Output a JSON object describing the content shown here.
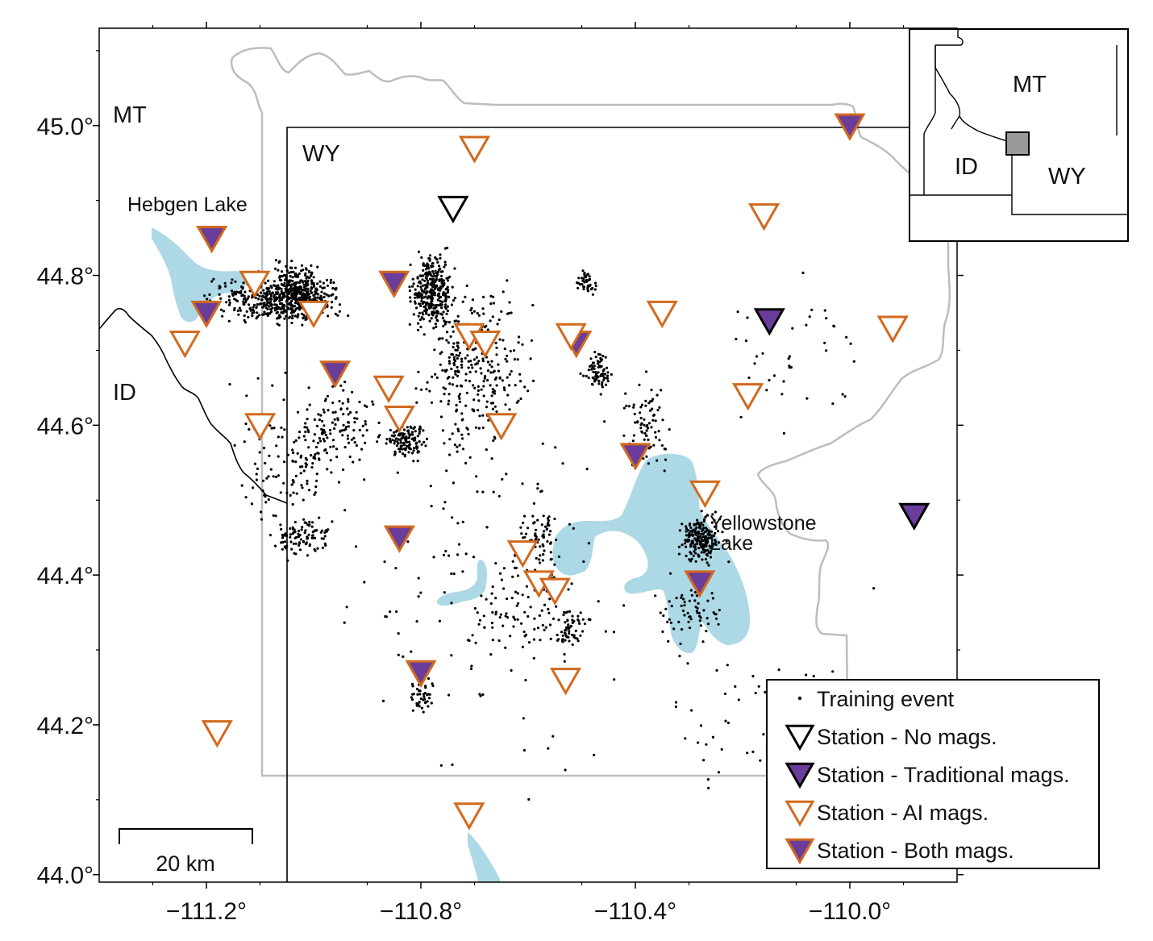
{
  "map": {
    "lon_range": [
      -111.4,
      -109.8
    ],
    "lat_range": [
      43.99,
      45.13
    ],
    "x_ticks": [
      {
        "value": -111.2,
        "label": "−111.2°"
      },
      {
        "value": -110.8,
        "label": "−110.8°"
      },
      {
        "value": -110.4,
        "label": "−110.4°"
      },
      {
        "value": -110.0,
        "label": "−110.0°"
      }
    ],
    "y_ticks": [
      {
        "value": 44.0,
        "label": "44.0°"
      },
      {
        "value": 44.2,
        "label": "44.2°"
      },
      {
        "value": 44.4,
        "label": "44.4°"
      },
      {
        "value": 44.6,
        "label": "44.6°"
      },
      {
        "value": 44.8,
        "label": "44.8°"
      },
      {
        "value": 45.0,
        "label": "45.0°"
      }
    ],
    "state_labels": {
      "mt": "MT",
      "wy": "WY",
      "id": "ID"
    },
    "place_labels": {
      "hebgen": "Hebgen Lake",
      "yellowstone_line1": "Yellowstone",
      "yellowstone_line2": "Lake"
    },
    "scale_bar": {
      "label": "20 km",
      "length_km": 20
    },
    "colors": {
      "lake": "#add8e6",
      "park_boundary": "#bdbdbd",
      "state_border": "#000000",
      "station_outline_ai": "#d2691e",
      "station_fill_traditional": "#6a3d9a",
      "event_dot": "#000000"
    }
  },
  "stations": [
    {
      "lon": -110.74,
      "lat": 44.89,
      "type": "none"
    },
    {
      "lon": -110.15,
      "lat": 44.74,
      "type": "traditional"
    },
    {
      "lon": -109.88,
      "lat": 44.48,
      "type": "traditional"
    },
    {
      "lon": -110.0,
      "lat": 45.0,
      "type": "both"
    },
    {
      "lon": -111.19,
      "lat": 44.85,
      "type": "both"
    },
    {
      "lon": -111.2,
      "lat": 44.75,
      "type": "both"
    },
    {
      "lon": -110.85,
      "lat": 44.79,
      "type": "both"
    },
    {
      "lon": -110.96,
      "lat": 44.67,
      "type": "both"
    },
    {
      "lon": -110.51,
      "lat": 44.71,
      "type": "both"
    },
    {
      "lon": -110.4,
      "lat": 44.56,
      "type": "both"
    },
    {
      "lon": -110.84,
      "lat": 44.45,
      "type": "both"
    },
    {
      "lon": -110.28,
      "lat": 44.39,
      "type": "both"
    },
    {
      "lon": -110.8,
      "lat": 44.27,
      "type": "both"
    },
    {
      "lon": -110.7,
      "lat": 44.97,
      "type": "ai"
    },
    {
      "lon": -110.16,
      "lat": 44.88,
      "type": "ai"
    },
    {
      "lon": -111.11,
      "lat": 44.79,
      "type": "ai"
    },
    {
      "lon": -111.0,
      "lat": 44.75,
      "type": "ai"
    },
    {
      "lon": -110.35,
      "lat": 44.75,
      "type": "ai"
    },
    {
      "lon": -109.92,
      "lat": 44.73,
      "type": "ai"
    },
    {
      "lon": -110.71,
      "lat": 44.72,
      "type": "ai"
    },
    {
      "lon": -110.68,
      "lat": 44.71,
      "type": "ai"
    },
    {
      "lon": -110.52,
      "lat": 44.72,
      "type": "ai"
    },
    {
      "lon": -111.24,
      "lat": 44.71,
      "type": "ai"
    },
    {
      "lon": -110.86,
      "lat": 44.65,
      "type": "ai"
    },
    {
      "lon": -110.19,
      "lat": 44.64,
      "type": "ai"
    },
    {
      "lon": -110.84,
      "lat": 44.61,
      "type": "ai"
    },
    {
      "lon": -110.65,
      "lat": 44.6,
      "type": "ai"
    },
    {
      "lon": -111.1,
      "lat": 44.6,
      "type": "ai"
    },
    {
      "lon": -110.27,
      "lat": 44.51,
      "type": "ai"
    },
    {
      "lon": -110.61,
      "lat": 44.43,
      "type": "ai"
    },
    {
      "lon": -110.58,
      "lat": 44.39,
      "type": "ai"
    },
    {
      "lon": -110.55,
      "lat": 44.38,
      "type": "ai"
    },
    {
      "lon": -110.53,
      "lat": 44.26,
      "type": "ai"
    },
    {
      "lon": -111.18,
      "lat": 44.19,
      "type": "ai"
    },
    {
      "lon": -110.71,
      "lat": 44.08,
      "type": "ai"
    }
  ],
  "event_clusters": [
    {
      "lon": -111.07,
      "lat": 44.77,
      "slon": 0.1,
      "slat": 0.025,
      "n": 420
    },
    {
      "lon": -111.03,
      "lat": 44.78,
      "slon": 0.04,
      "slat": 0.03,
      "n": 250
    },
    {
      "lon": -110.78,
      "lat": 44.78,
      "slon": 0.03,
      "slat": 0.04,
      "n": 320
    },
    {
      "lon": -110.7,
      "lat": 44.68,
      "slon": 0.08,
      "slat": 0.09,
      "n": 320
    },
    {
      "lon": -110.83,
      "lat": 44.58,
      "slon": 0.03,
      "slat": 0.02,
      "n": 120
    },
    {
      "lon": -110.28,
      "lat": 44.45,
      "slon": 0.03,
      "slat": 0.025,
      "n": 200
    },
    {
      "lon": -110.47,
      "lat": 44.67,
      "slon": 0.02,
      "slat": 0.02,
      "n": 70
    },
    {
      "lon": -110.49,
      "lat": 44.79,
      "slon": 0.02,
      "slat": 0.015,
      "n": 40
    },
    {
      "lon": -111.02,
      "lat": 44.45,
      "slon": 0.04,
      "slat": 0.02,
      "n": 90
    },
    {
      "lon": -110.58,
      "lat": 44.45,
      "slon": 0.03,
      "slat": 0.05,
      "n": 80
    },
    {
      "lon": -110.52,
      "lat": 44.33,
      "slon": 0.02,
      "slat": 0.02,
      "n": 50
    },
    {
      "lon": -110.8,
      "lat": 44.24,
      "slon": 0.02,
      "slat": 0.02,
      "n": 40
    },
    {
      "lon": -110.38,
      "lat": 44.6,
      "slon": 0.03,
      "slat": 0.05,
      "n": 80
    },
    {
      "lon": -110.95,
      "lat": 44.6,
      "slon": 0.06,
      "slat": 0.05,
      "n": 120
    },
    {
      "lon": -110.3,
      "lat": 44.35,
      "slon": 0.05,
      "slat": 0.03,
      "n": 60
    },
    {
      "lon": -110.6,
      "lat": 44.35,
      "slon": 0.12,
      "slat": 0.05,
      "n": 90
    },
    {
      "lon": -111.05,
      "lat": 44.55,
      "slon": 0.08,
      "slat": 0.08,
      "n": 120
    },
    {
      "lon": -110.7,
      "lat": 44.4,
      "slon": 0.22,
      "slat": 0.2,
      "n": 120
    },
    {
      "lon": -110.1,
      "lat": 44.7,
      "slon": 0.12,
      "slat": 0.08,
      "n": 40
    },
    {
      "lon": -110.2,
      "lat": 44.25,
      "slon": 0.2,
      "slat": 0.12,
      "n": 50
    }
  ],
  "inset": {
    "labels": {
      "mt": "MT",
      "id": "ID",
      "wy": "WY"
    },
    "box_fill": "#999999"
  },
  "legend": {
    "items": [
      {
        "symbol": "event",
        "label": "Training event"
      },
      {
        "symbol": "none",
        "label": "Station - No mags."
      },
      {
        "symbol": "traditional",
        "label": "Station - Traditional mags."
      },
      {
        "symbol": "ai",
        "label": "Station - AI mags."
      },
      {
        "symbol": "both",
        "label": "Station - Both mags."
      }
    ]
  }
}
